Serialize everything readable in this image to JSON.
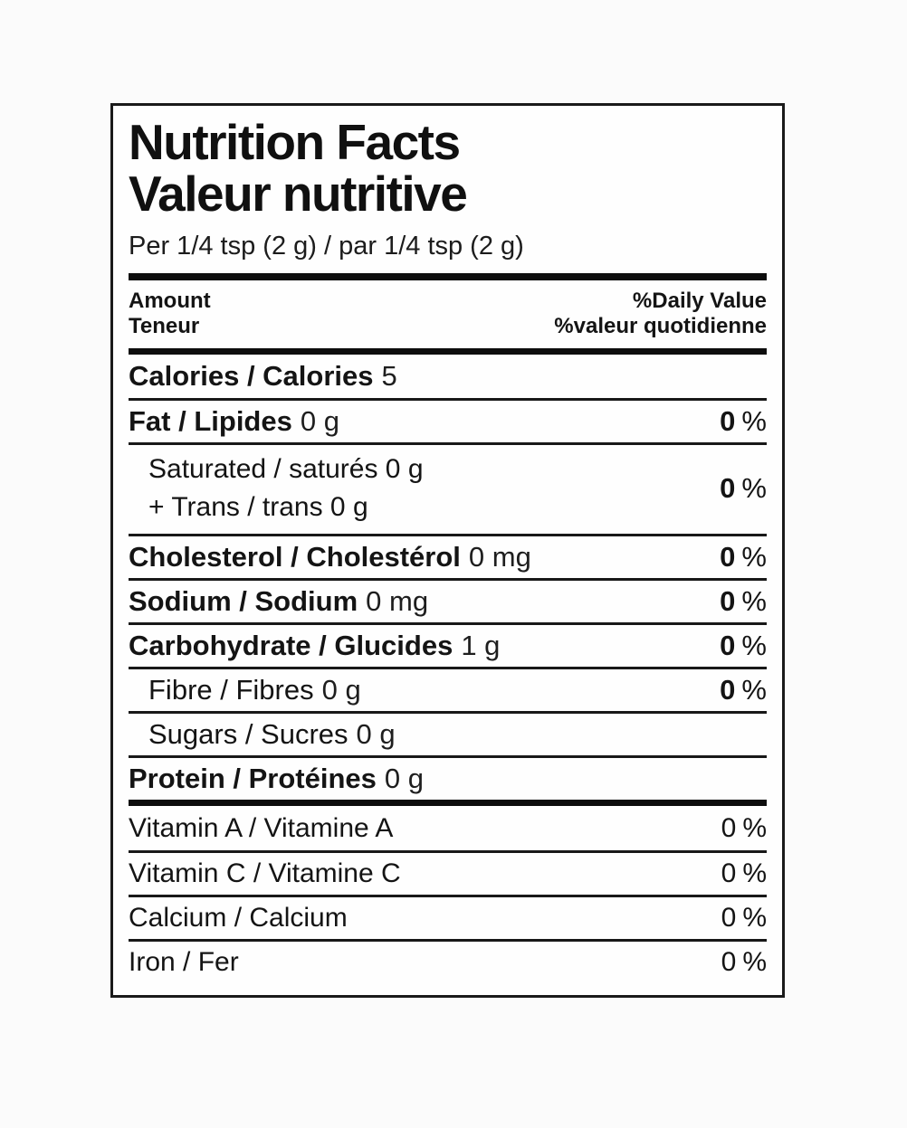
{
  "label": {
    "title_en": "Nutrition Facts",
    "title_fr": "Valeur nutritive",
    "serving": "Per 1/4 tsp (2 g) / par 1/4 tsp (2 g)",
    "header": {
      "amount_en": "Amount",
      "amount_fr": "Teneur",
      "daily_value_en": "%Daily Value",
      "daily_value_fr": "%valeur quotidienne"
    },
    "rows": [
      {
        "label": "Calories / Calories",
        "amount": "5"
      },
      {
        "label": "Fat / Lipides",
        "amount": "0 g",
        "dv_value": "0",
        "dv_unit": "%"
      },
      {
        "line1": "Saturated / saturés 0 g",
        "line2": "+ Trans / trans 0 g",
        "dv_value": "0",
        "dv_unit": "%"
      },
      {
        "label": "Cholesterol / Cholestérol",
        "amount": "0 mg",
        "dv_value": "0",
        "dv_unit": "%"
      },
      {
        "label": "Sodium / Sodium",
        "amount": "0 mg",
        "dv_value": "0",
        "dv_unit": "%"
      },
      {
        "label": "Carbohydrate / Glucides",
        "amount": "1 g",
        "dv_value": "0",
        "dv_unit": "%"
      },
      {
        "label": "Fibre / Fibres",
        "amount": "0 g",
        "dv_value": "0",
        "dv_unit": "%"
      },
      {
        "label": "Sugars / Sucres",
        "amount": "0 g"
      },
      {
        "label": "Protein / Protéines",
        "amount": "0 g"
      },
      {
        "label": "Vitamin A / Vitamine A",
        "dv_value": "0",
        "dv_unit": "%"
      },
      {
        "label": "Vitamin C / Vitamine C",
        "dv_value": "0",
        "dv_unit": "%"
      },
      {
        "label": "Calcium / Calcium",
        "dv_value": "0",
        "dv_unit": "%"
      },
      {
        "label": "Iron / Fer",
        "dv_value": "0",
        "dv_unit": "%"
      }
    ],
    "colors": {
      "text": "#141414",
      "border": "#1a1a1a",
      "background": "#fefefe",
      "page_background": "#fbfbfb"
    }
  }
}
